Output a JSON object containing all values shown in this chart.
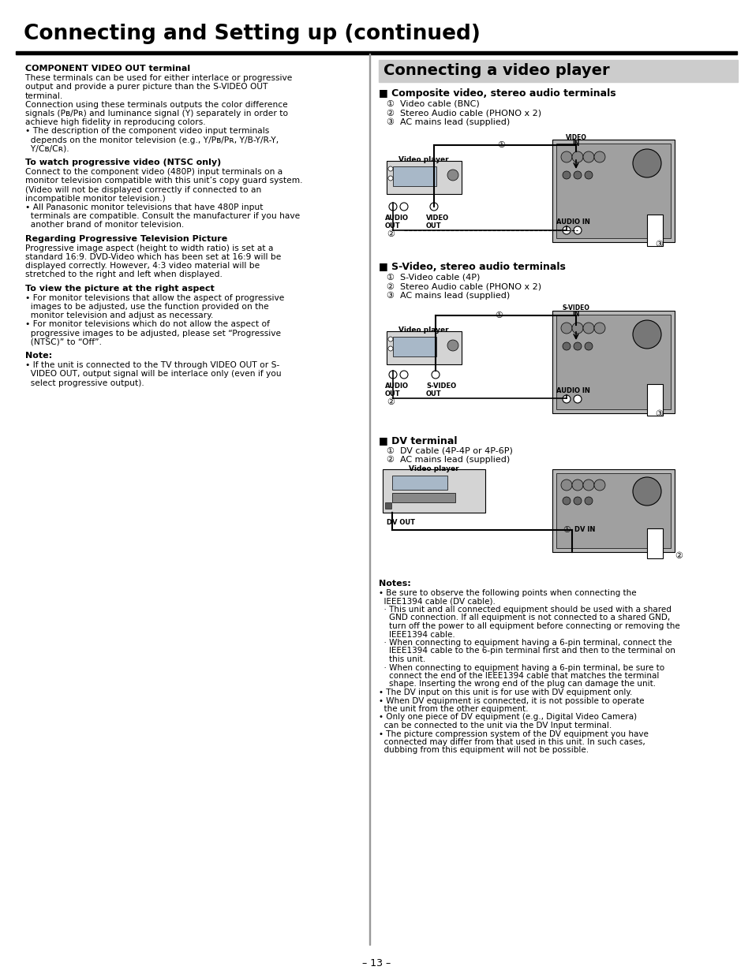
{
  "title": "Connecting and Setting up (continued)",
  "page_number": "– 13 –",
  "bg": "#ffffff",
  "left_sections": [
    {
      "head": "COMPONENT VIDEO OUT terminal",
      "lines": [
        "These terminals can be used for either interlace or progressive",
        "output and provide a purer picture than the S-VIDEO OUT",
        "terminal.",
        "Connection using these terminals outputs the color difference",
        "signals (Pʙ/Pʀ) and luminance signal (Y) separately in order to",
        "achieve high fidelity in reproducing colors.",
        "• The description of the component video input terminals",
        "  depends on the monitor television (e.g., Y/Pʙ/Pʀ, Y/B-Y/R-Y,",
        "  Y/Cʙ/Cʀ)."
      ]
    },
    {
      "head": "To watch progressive video (NTSC only)",
      "lines": [
        "Connect to the component video (480P) input terminals on a",
        "monitor television compatible with this unit’s copy guard system.",
        "(Video will not be displayed correctly if connected to an",
        "incompatible monitor television.)",
        "• All Panasonic monitor televisions that have 480P input",
        "  terminals are compatible. Consult the manufacturer if you have",
        "  another brand of monitor television."
      ]
    },
    {
      "head": "Regarding Progressive Television Picture",
      "lines": [
        "Progressive image aspect (height to width ratio) is set at a",
        "standard 16:9. DVD-Video which has been set at 16:9 will be",
        "displayed correctly. However, 4:3 video material will be",
        "stretched to the right and left when displayed."
      ]
    },
    {
      "head": "To view the picture at the right aspect",
      "lines": [
        "• For monitor televisions that allow the aspect of progressive",
        "  images to be adjusted, use the function provided on the",
        "  monitor television and adjust as necessary.",
        "• For monitor televisions which do not allow the aspect of",
        "  progressive images to be adjusted, please set “Progressive",
        "  (NTSC)” to “Off”."
      ]
    },
    {
      "head": "Note:",
      "lines": [
        "• If the unit is connected to the TV through VIDEO OUT or S-",
        "  VIDEO OUT, output signal will be interlace only (even if you",
        "  select progressive output)."
      ]
    }
  ],
  "right_main_head": "Connecting a video player",
  "composite_head": "■ Composite video, stereo audio terminals",
  "composite_items": [
    "①  Video cable (BNC)",
    "②  Stereo Audio cable (PHONO x 2)",
    "③  AC mains lead (supplied)"
  ],
  "svideo_head": "■ S-Video, stereo audio terminals",
  "svideo_items": [
    "①  S-Video cable (4P)",
    "②  Stereo Audio cable (PHONO x 2)",
    "③  AC mains lead (supplied)"
  ],
  "dv_head": "■ DV terminal",
  "dv_items": [
    "①  DV cable (4P-4P or 4P-6P)",
    "②  AC mains lead (supplied)"
  ],
  "notes_head": "Notes:",
  "notes_lines": [
    "• Be sure to observe the following points when connecting the",
    "  IEEE1394 cable (DV cable).",
    "  · This unit and all connected equipment should be used with a shared",
    "    GND connection. If all equipment is not connected to a shared GND,",
    "    turn off the power to all equipment before connecting or removing the",
    "    IEEE1394 cable.",
    "  · When connecting to equipment having a 6-pin terminal, connect the",
    "    IEEE1394 cable to the 6-pin terminal first and then to the terminal on",
    "    this unit.",
    "  · When connecting to equipment having a 6-pin terminal, be sure to",
    "    connect the end of the IEEE1394 cable that matches the terminal",
    "    shape. Inserting the wrong end of the plug can damage the unit.",
    "• The DV input on this unit is for use with DV equipment only.",
    "• When DV equipment is connected, it is not possible to operate",
    "  the unit from the other equipment.",
    "• Only one piece of DV equipment (e.g., Digital Video Camera)",
    "  can be connected to the unit via the DV Input terminal.",
    "• The picture compression system of the DV equipment you have",
    "  connected may differ from that used in this unit. In such cases,",
    "  dubbing from this equipment will not be possible."
  ]
}
